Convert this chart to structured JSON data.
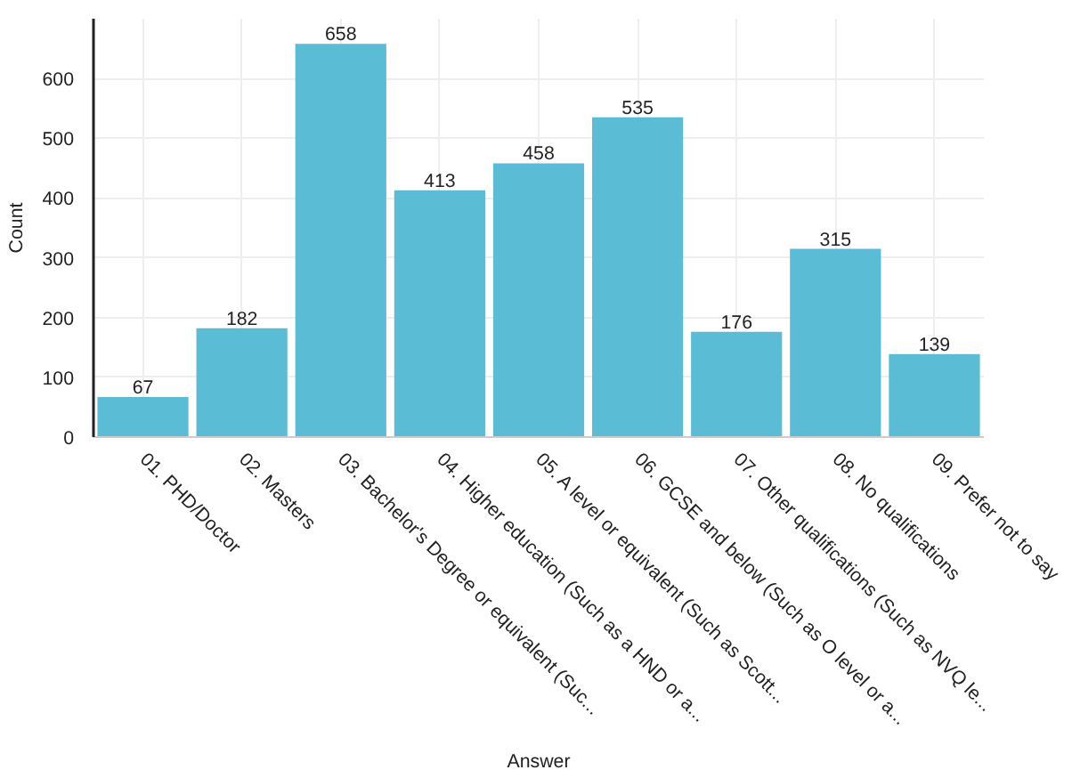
{
  "chart_data": {
    "type": "bar",
    "xlabel": "Answer",
    "ylabel": "Count",
    "categories": [
      "01. PHD/Doctor",
      "02. Masters",
      "03. Bachelor's Degree or equivalent (Suc...",
      "04. Higher education (Such as a HND or a...",
      "05. A level or equivalent (Such as Scott...",
      "06. GCSE and below (Such as O level or a...",
      "07. Other qualifications (Such as NVQ le...",
      "08. No qualifications",
      "09. Prefer not to say"
    ],
    "values": [
      67,
      182,
      658,
      413,
      458,
      535,
      176,
      315,
      139
    ],
    "color": "#5bbcd6",
    "ylim": [
      0,
      700
    ],
    "yticks": [
      0,
      100,
      200,
      300,
      400,
      500,
      600
    ],
    "data_labels": true,
    "grid": true
  }
}
